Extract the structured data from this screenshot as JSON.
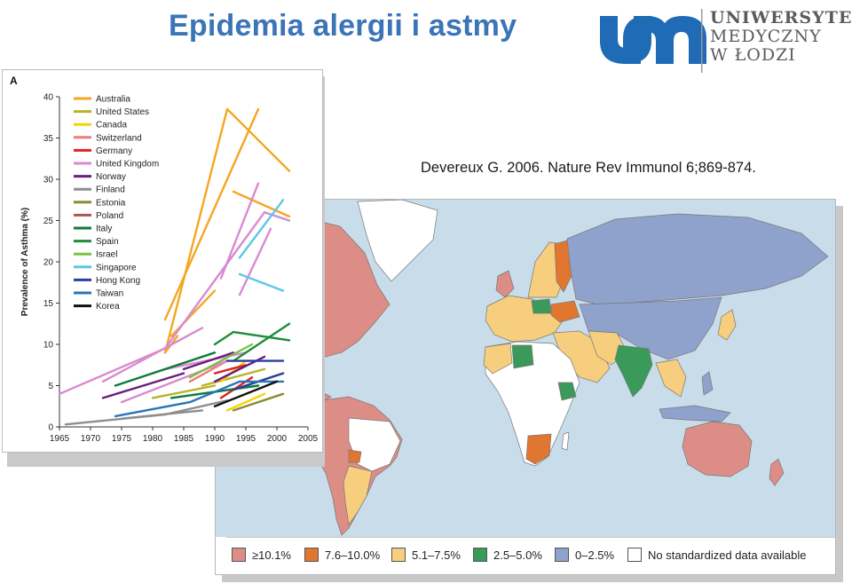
{
  "slide": {
    "title": "Epidemia alergii i astmy",
    "citation": "Devereux G. 2006.  Nature Rev Immunol 6;869-874."
  },
  "logo": {
    "monogram": "um",
    "line1": "UNIWERSYTET",
    "line2": "MEDYCZNY",
    "line3": "W ŁODZI",
    "color": "#1f6bb5"
  },
  "map_legend": [
    {
      "label": "≥10.1%",
      "color": "#dc8d86"
    },
    {
      "label": "7.6–10.0%",
      "color": "#e0762f"
    },
    {
      "label": "5.1–7.5%",
      "color": "#f6ce7e"
    },
    {
      "label": "2.5–5.0%",
      "color": "#3a9a5a"
    },
    {
      "label": "0–2.5%",
      "color": "#8fa2cc"
    },
    {
      "label": "No standardized data available",
      "color": "#ffffff"
    }
  ],
  "chart_data": {
    "type": "line",
    "panel_label": "A",
    "ylabel": "Prevalence of Asthma (%)",
    "xlabel": "",
    "xlim": [
      1965,
      2005
    ],
    "ylim": [
      0,
      40
    ],
    "xticks": [
      1965,
      1970,
      1975,
      1980,
      1985,
      1990,
      1995,
      2000,
      2005
    ],
    "yticks": [
      0,
      5,
      10,
      15,
      20,
      25,
      30,
      35,
      40
    ],
    "legend_position": "top-left",
    "series": [
      {
        "name": "Australia",
        "color": "#f5a623",
        "segments": [
          [
            [
              1982,
              9
            ],
            [
              1992,
              38.5
            ],
            [
              2002,
              31
            ]
          ],
          [
            [
              1982,
              13
            ],
            [
              1997,
              38.5
            ]
          ],
          [
            [
              1993,
              28.5
            ],
            [
              2002,
              25.5
            ]
          ],
          [
            [
              1983,
              11
            ],
            [
              1990,
              16.5
            ]
          ],
          [
            [
              1982,
              9
            ],
            [
              1984,
              11
            ]
          ]
        ]
      },
      {
        "name": "United States",
        "color": "#b9b329",
        "segments": [
          [
            [
              1980,
              3.5
            ],
            [
              1990,
              5
            ]
          ],
          [
            [
              1988,
              5
            ],
            [
              1998,
              7
            ]
          ]
        ]
      },
      {
        "name": "Canada",
        "color": "#f4d400",
        "segments": [
          [
            [
              1992,
              2
            ],
            [
              1998,
              4
            ]
          ],
          [
            [
              1991,
              5.5
            ],
            [
              1995,
              8
            ]
          ]
        ]
      },
      {
        "name": "Switzerland",
        "color": "#f07b7b",
        "segments": [
          [
            [
              1986,
              5.5
            ],
            [
              1992,
              8
            ]
          ]
        ]
      },
      {
        "name": "Germany",
        "color": "#e02020",
        "segments": [
          [
            [
              1990,
              6.5
            ],
            [
              1995,
              7.5
            ]
          ],
          [
            [
              1991,
              3.5
            ],
            [
              1996,
              6
            ]
          ]
        ]
      },
      {
        "name": "United Kingdom",
        "color": "#d98ad0",
        "segments": [
          [
            [
              1965,
              4
            ],
            [
              1982,
              9.5
            ],
            [
              1998,
              26
            ],
            [
              2002,
              25
            ]
          ],
          [
            [
              1972,
              5.5
            ],
            [
              1988,
              12
            ]
          ],
          [
            [
              1991,
              18
            ],
            [
              1997,
              29.5
            ]
          ],
          [
            [
              1994,
              16
            ],
            [
              1999,
              24
            ]
          ],
          [
            [
              1975,
              3
            ],
            [
              1992,
              8
            ]
          ],
          [
            [
              1982,
              7
            ],
            [
              1995,
              9
            ]
          ]
        ]
      },
      {
        "name": "Norway",
        "color": "#6b1e7d",
        "segments": [
          [
            [
              1972,
              3.5
            ],
            [
              1985,
              6.5
            ]
          ],
          [
            [
              1985,
              7
            ],
            [
              1993,
              9
            ]
          ],
          [
            [
              1990,
              5.5
            ],
            [
              1998,
              8.5
            ]
          ]
        ]
      },
      {
        "name": "Finland",
        "color": "#8e8e8e",
        "segments": [
          [
            [
              1966,
              0.3
            ],
            [
              1982,
              1.5
            ],
            [
              1992,
              3.2
            ]
          ],
          [
            [
              1975,
              1
            ],
            [
              1988,
              2
            ]
          ]
        ]
      },
      {
        "name": "Estonia",
        "color": "#8c8a35",
        "segments": [
          [
            [
              1993,
              2
            ],
            [
              2001,
              4
            ]
          ]
        ]
      },
      {
        "name": "Poland",
        "color": "#a85656",
        "segments": [
          [
            [
              1993,
              4.5
            ],
            [
              2001,
              6.5
            ]
          ]
        ]
      },
      {
        "name": "Italy",
        "color": "#117a3c",
        "segments": [
          [
            [
              1974,
              5
            ],
            [
              1990,
              9
            ]
          ],
          [
            [
              1983,
              3.5
            ],
            [
              1997,
              5
            ]
          ]
        ]
      },
      {
        "name": "Spain",
        "color": "#1e8c3a",
        "segments": [
          [
            [
              1990,
              10
            ],
            [
              1993,
              11.5
            ],
            [
              2002,
              10.5
            ]
          ],
          [
            [
              1993,
              8
            ],
            [
              2002,
              12.5
            ]
          ]
        ]
      },
      {
        "name": "Israel",
        "color": "#7cc243",
        "segments": [
          [
            [
              1986,
              6
            ],
            [
              1996,
              10
            ]
          ]
        ]
      },
      {
        "name": "Singapore",
        "color": "#5bc8e6",
        "segments": [
          [
            [
              1994,
              20.5
            ],
            [
              2001,
              27.5
            ]
          ],
          [
            [
              1994,
              18.5
            ],
            [
              2001,
              16.5
            ]
          ]
        ]
      },
      {
        "name": "Hong Kong",
        "color": "#2a3f9e",
        "segments": [
          [
            [
              1992,
              8
            ],
            [
              2001,
              8
            ]
          ],
          [
            [
              1993,
              4.5
            ],
            [
              2001,
              6.5
            ]
          ]
        ]
      },
      {
        "name": "Taiwan",
        "color": "#2a74b8",
        "segments": [
          [
            [
              1974,
              1.3
            ],
            [
              1986,
              3
            ],
            [
              1994,
              5.5
            ],
            [
              2001,
              5.5
            ]
          ]
        ]
      },
      {
        "name": "Korea",
        "color": "#111111",
        "segments": [
          [
            [
              1990,
              2.5
            ],
            [
              2000,
              5.5
            ]
          ]
        ]
      }
    ]
  }
}
